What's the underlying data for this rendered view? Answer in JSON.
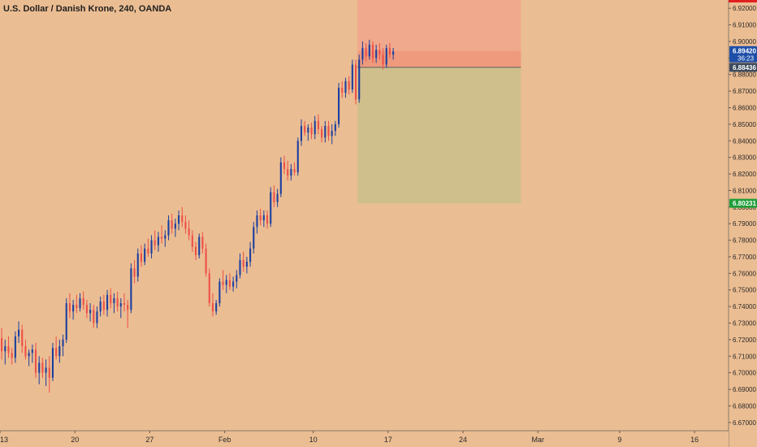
{
  "chart_data": {
    "type": "candlestick",
    "title": "U.S. Dollar / Danish Krone, 240, OANDA",
    "ylim": [
      6.665,
      6.925
    ],
    "y_ticks": [
      6.67,
      6.68,
      6.69,
      6.7,
      6.71,
      6.72,
      6.73,
      6.74,
      6.75,
      6.76,
      6.77,
      6.78,
      6.79,
      6.8,
      6.81,
      6.82,
      6.83,
      6.84,
      6.85,
      6.86,
      6.87,
      6.88,
      6.89,
      6.9,
      6.91,
      6.92
    ],
    "y_tick_labels": [
      "6.67000",
      "6.68000",
      "6.69000",
      "6.70000",
      "6.71000",
      "6.72000",
      "6.73000",
      "6.74000",
      "6.75000",
      "6.76000",
      "6.77000",
      "6.78000",
      "6.79000",
      "6.80000",
      "6.81000",
      "6.82000",
      "6.83000",
      "6.84000",
      "6.85000",
      "6.86000",
      "6.87000",
      "6.88000",
      "6.89000",
      "6.90000",
      "6.91000",
      "6.92000"
    ],
    "x_range": [
      0,
      214
    ],
    "x_ticks": [
      {
        "label": "13",
        "x": 0
      },
      {
        "label": "20",
        "x": 22
      },
      {
        "label": "27",
        "x": 44
      },
      {
        "label": "Feb",
        "x": 66
      },
      {
        "label": "10",
        "x": 92
      },
      {
        "label": "17",
        "x": 114
      },
      {
        "label": "24",
        "x": 136
      },
      {
        "label": "Mar",
        "x": 158
      },
      {
        "label": "9",
        "x": 182
      },
      {
        "label": "16",
        "x": 204
      }
    ],
    "price_labels": [
      {
        "value": 6.8942,
        "label": "6.89420",
        "color": "#1e4fa8",
        "countdown": "36:23"
      },
      {
        "value": 6.88436,
        "label": "6.88436",
        "color": "#3d4a5c"
      },
      {
        "value": 6.80231,
        "label": "6.80231",
        "color": "#1f9e3a"
      }
    ],
    "grid": false,
    "position": {
      "entry": 6.88436,
      "stop": 6.925,
      "target": 6.80231,
      "x_start": 105,
      "x_end": 153,
      "shaded_band": [
        6.88436,
        6.8942
      ]
    },
    "colors": {
      "up": "#1b3fa0",
      "down": "#ee5048",
      "risk": "#f0a98c",
      "risk_band": "#ef9a7c",
      "reward": "#cfbf8c",
      "background": "#ebbd92"
    },
    "candles": [
      {
        "x": 0,
        "o": 6.721,
        "h": 6.727,
        "l": 6.708,
        "c": 6.713
      },
      {
        "x": 1,
        "o": 6.713,
        "h": 6.72,
        "l": 6.705,
        "c": 6.716
      },
      {
        "x": 2,
        "o": 6.716,
        "h": 6.722,
        "l": 6.709,
        "c": 6.712
      },
      {
        "x": 3,
        "o": 6.712,
        "h": 6.715,
        "l": 6.705,
        "c": 6.709
      },
      {
        "x": 4,
        "o": 6.709,
        "h": 6.725,
        "l": 6.706,
        "c": 6.722
      },
      {
        "x": 5,
        "o": 6.722,
        "h": 6.731,
        "l": 6.718,
        "c": 6.726
      },
      {
        "x": 6,
        "o": 6.726,
        "h": 6.729,
        "l": 6.712,
        "c": 6.716
      },
      {
        "x": 7,
        "o": 6.716,
        "h": 6.72,
        "l": 6.708,
        "c": 6.71
      },
      {
        "x": 8,
        "o": 6.71,
        "h": 6.714,
        "l": 6.704,
        "c": 6.712
      },
      {
        "x": 9,
        "o": 6.712,
        "h": 6.717,
        "l": 6.706,
        "c": 6.714
      },
      {
        "x": 10,
        "o": 6.714,
        "h": 6.718,
        "l": 6.697,
        "c": 6.7
      },
      {
        "x": 11,
        "o": 6.7,
        "h": 6.71,
        "l": 6.693,
        "c": 6.706
      },
      {
        "x": 12,
        "o": 6.706,
        "h": 6.709,
        "l": 6.697,
        "c": 6.7
      },
      {
        "x": 13,
        "o": 6.7,
        "h": 6.708,
        "l": 6.692,
        "c": 6.703
      },
      {
        "x": 14,
        "o": 6.703,
        "h": 6.71,
        "l": 6.688,
        "c": 6.697
      },
      {
        "x": 15,
        "o": 6.697,
        "h": 6.718,
        "l": 6.695,
        "c": 6.715
      },
      {
        "x": 16,
        "o": 6.715,
        "h": 6.722,
        "l": 6.708,
        "c": 6.71
      },
      {
        "x": 17,
        "o": 6.71,
        "h": 6.72,
        "l": 6.706,
        "c": 6.716
      },
      {
        "x": 18,
        "o": 6.716,
        "h": 6.723,
        "l": 6.71,
        "c": 6.72
      },
      {
        "x": 19,
        "o": 6.72,
        "h": 6.745,
        "l": 6.718,
        "c": 6.742
      },
      {
        "x": 20,
        "o": 6.742,
        "h": 6.748,
        "l": 6.733,
        "c": 6.737
      },
      {
        "x": 21,
        "o": 6.737,
        "h": 6.744,
        "l": 6.732,
        "c": 6.741
      },
      {
        "x": 22,
        "o": 6.741,
        "h": 6.747,
        "l": 6.736,
        "c": 6.739
      },
      {
        "x": 23,
        "o": 6.739,
        "h": 6.748,
        "l": 6.737,
        "c": 6.745
      },
      {
        "x": 24,
        "o": 6.745,
        "h": 6.749,
        "l": 6.738,
        "c": 6.741
      },
      {
        "x": 25,
        "o": 6.741,
        "h": 6.744,
        "l": 6.733,
        "c": 6.736
      },
      {
        "x": 26,
        "o": 6.736,
        "h": 6.742,
        "l": 6.731,
        "c": 6.738
      },
      {
        "x": 27,
        "o": 6.738,
        "h": 6.741,
        "l": 6.727,
        "c": 6.73
      },
      {
        "x": 28,
        "o": 6.73,
        "h": 6.74,
        "l": 6.727,
        "c": 6.737
      },
      {
        "x": 29,
        "o": 6.737,
        "h": 6.746,
        "l": 6.734,
        "c": 6.743
      },
      {
        "x": 30,
        "o": 6.743,
        "h": 6.747,
        "l": 6.735,
        "c": 6.738
      },
      {
        "x": 31,
        "o": 6.738,
        "h": 6.75,
        "l": 6.734,
        "c": 6.747
      },
      {
        "x": 32,
        "o": 6.747,
        "h": 6.751,
        "l": 6.739,
        "c": 6.742
      },
      {
        "x": 33,
        "o": 6.742,
        "h": 6.748,
        "l": 6.736,
        "c": 6.745
      },
      {
        "x": 34,
        "o": 6.745,
        "h": 6.749,
        "l": 6.737,
        "c": 6.74
      },
      {
        "x": 35,
        "o": 6.74,
        "h": 6.745,
        "l": 6.733,
        "c": 6.742
      },
      {
        "x": 36,
        "o": 6.742,
        "h": 6.748,
        "l": 6.737,
        "c": 6.741
      },
      {
        "x": 37,
        "o": 6.741,
        "h": 6.744,
        "l": 6.727,
        "c": 6.738
      },
      {
        "x": 38,
        "o": 6.738,
        "h": 6.766,
        "l": 6.736,
        "c": 6.763
      },
      {
        "x": 39,
        "o": 6.763,
        "h": 6.768,
        "l": 6.754,
        "c": 6.758
      },
      {
        "x": 40,
        "o": 6.758,
        "h": 6.775,
        "l": 6.755,
        "c": 6.772
      },
      {
        "x": 41,
        "o": 6.772,
        "h": 6.777,
        "l": 6.764,
        "c": 6.767
      },
      {
        "x": 42,
        "o": 6.767,
        "h": 6.778,
        "l": 6.765,
        "c": 6.775
      },
      {
        "x": 43,
        "o": 6.775,
        "h": 6.781,
        "l": 6.77,
        "c": 6.772
      },
      {
        "x": 44,
        "o": 6.772,
        "h": 6.783,
        "l": 6.769,
        "c": 6.78
      },
      {
        "x": 45,
        "o": 6.78,
        "h": 6.786,
        "l": 6.774,
        "c": 6.777
      },
      {
        "x": 46,
        "o": 6.777,
        "h": 6.785,
        "l": 6.773,
        "c": 6.782
      },
      {
        "x": 47,
        "o": 6.782,
        "h": 6.789,
        "l": 6.778,
        "c": 6.781
      },
      {
        "x": 48,
        "o": 6.781,
        "h": 6.786,
        "l": 6.776,
        "c": 6.783
      },
      {
        "x": 49,
        "o": 6.783,
        "h": 6.795,
        "l": 6.78,
        "c": 6.792
      },
      {
        "x": 50,
        "o": 6.792,
        "h": 6.796,
        "l": 6.784,
        "c": 6.787
      },
      {
        "x": 51,
        "o": 6.787,
        "h": 6.793,
        "l": 6.782,
        "c": 6.79
      },
      {
        "x": 52,
        "o": 6.79,
        "h": 6.798,
        "l": 6.786,
        "c": 6.795
      },
      {
        "x": 53,
        "o": 6.795,
        "h": 6.8,
        "l": 6.788,
        "c": 6.791
      },
      {
        "x": 54,
        "o": 6.791,
        "h": 6.795,
        "l": 6.784,
        "c": 6.787
      },
      {
        "x": 55,
        "o": 6.787,
        "h": 6.792,
        "l": 6.78,
        "c": 6.783
      },
      {
        "x": 56,
        "o": 6.783,
        "h": 6.786,
        "l": 6.773,
        "c": 6.776
      },
      {
        "x": 57,
        "o": 6.776,
        "h": 6.779,
        "l": 6.768,
        "c": 6.771
      },
      {
        "x": 58,
        "o": 6.771,
        "h": 6.784,
        "l": 6.769,
        "c": 6.782
      },
      {
        "x": 59,
        "o": 6.782,
        "h": 6.785,
        "l": 6.772,
        "c": 6.775
      },
      {
        "x": 60,
        "o": 6.775,
        "h": 6.778,
        "l": 6.758,
        "c": 6.76
      },
      {
        "x": 61,
        "o": 6.76,
        "h": 6.763,
        "l": 6.74,
        "c": 6.742
      },
      {
        "x": 62,
        "o": 6.742,
        "h": 6.748,
        "l": 6.734,
        "c": 6.737
      },
      {
        "x": 63,
        "o": 6.737,
        "h": 6.744,
        "l": 6.735,
        "c": 6.742
      },
      {
        "x": 64,
        "o": 6.742,
        "h": 6.757,
        "l": 6.74,
        "c": 6.755
      },
      {
        "x": 65,
        "o": 6.755,
        "h": 6.762,
        "l": 6.75,
        "c": 6.753
      },
      {
        "x": 66,
        "o": 6.753,
        "h": 6.759,
        "l": 6.748,
        "c": 6.756
      },
      {
        "x": 67,
        "o": 6.756,
        "h": 6.76,
        "l": 6.75,
        "c": 6.752
      },
      {
        "x": 68,
        "o": 6.752,
        "h": 6.758,
        "l": 6.749,
        "c": 6.755
      },
      {
        "x": 69,
        "o": 6.755,
        "h": 6.762,
        "l": 6.751,
        "c": 6.759
      },
      {
        "x": 70,
        "o": 6.759,
        "h": 6.772,
        "l": 6.757,
        "c": 6.768
      },
      {
        "x": 71,
        "o": 6.768,
        "h": 6.773,
        "l": 6.761,
        "c": 6.764
      },
      {
        "x": 72,
        "o": 6.764,
        "h": 6.77,
        "l": 6.76,
        "c": 6.767
      },
      {
        "x": 73,
        "o": 6.767,
        "h": 6.779,
        "l": 6.764,
        "c": 6.775
      },
      {
        "x": 74,
        "o": 6.775,
        "h": 6.791,
        "l": 6.772,
        "c": 6.788
      },
      {
        "x": 75,
        "o": 6.788,
        "h": 6.798,
        "l": 6.784,
        "c": 6.795
      },
      {
        "x": 76,
        "o": 6.795,
        "h": 6.799,
        "l": 6.789,
        "c": 6.792
      },
      {
        "x": 77,
        "o": 6.792,
        "h": 6.798,
        "l": 6.788,
        "c": 6.795
      },
      {
        "x": 78,
        "o": 6.795,
        "h": 6.798,
        "l": 6.787,
        "c": 6.79
      },
      {
        "x": 79,
        "o": 6.79,
        "h": 6.812,
        "l": 6.788,
        "c": 6.809
      },
      {
        "x": 80,
        "o": 6.809,
        "h": 6.813,
        "l": 6.8,
        "c": 6.803
      },
      {
        "x": 81,
        "o": 6.803,
        "h": 6.811,
        "l": 6.8,
        "c": 6.808
      },
      {
        "x": 82,
        "o": 6.808,
        "h": 6.83,
        "l": 6.806,
        "c": 6.827
      },
      {
        "x": 83,
        "o": 6.827,
        "h": 6.831,
        "l": 6.82,
        "c": 6.823
      },
      {
        "x": 84,
        "o": 6.823,
        "h": 6.828,
        "l": 6.816,
        "c": 6.819
      },
      {
        "x": 85,
        "o": 6.819,
        "h": 6.826,
        "l": 6.816,
        "c": 6.823
      },
      {
        "x": 86,
        "o": 6.823,
        "h": 6.827,
        "l": 6.819,
        "c": 6.821
      },
      {
        "x": 87,
        "o": 6.821,
        "h": 6.842,
        "l": 6.819,
        "c": 6.84
      },
      {
        "x": 88,
        "o": 6.84,
        "h": 6.853,
        "l": 6.837,
        "c": 6.849
      },
      {
        "x": 89,
        "o": 6.849,
        "h": 6.852,
        "l": 6.843,
        "c": 6.845
      },
      {
        "x": 90,
        "o": 6.845,
        "h": 6.85,
        "l": 6.84,
        "c": 6.848
      },
      {
        "x": 91,
        "o": 6.848,
        "h": 6.851,
        "l": 6.841,
        "c": 6.844
      },
      {
        "x": 92,
        "o": 6.844,
        "h": 6.855,
        "l": 6.841,
        "c": 6.852
      },
      {
        "x": 93,
        "o": 6.852,
        "h": 6.856,
        "l": 6.844,
        "c": 6.847
      },
      {
        "x": 94,
        "o": 6.847,
        "h": 6.849,
        "l": 6.839,
        "c": 6.842
      },
      {
        "x": 95,
        "o": 6.842,
        "h": 6.852,
        "l": 6.839,
        "c": 6.849
      },
      {
        "x": 96,
        "o": 6.849,
        "h": 6.852,
        "l": 6.84,
        "c": 6.843
      },
      {
        "x": 97,
        "o": 6.843,
        "h": 6.85,
        "l": 6.838,
        "c": 6.846
      },
      {
        "x": 98,
        "o": 6.846,
        "h": 6.852,
        "l": 6.843,
        "c": 6.85
      },
      {
        "x": 99,
        "o": 6.85,
        "h": 6.875,
        "l": 6.848,
        "c": 6.872
      },
      {
        "x": 100,
        "o": 6.872,
        "h": 6.876,
        "l": 6.866,
        "c": 6.869
      },
      {
        "x": 101,
        "o": 6.869,
        "h": 6.878,
        "l": 6.866,
        "c": 6.876
      },
      {
        "x": 102,
        "o": 6.876,
        "h": 6.879,
        "l": 6.868,
        "c": 6.871
      },
      {
        "x": 103,
        "o": 6.871,
        "h": 6.889,
        "l": 6.869,
        "c": 6.886
      },
      {
        "x": 104,
        "o": 6.886,
        "h": 6.889,
        "l": 6.862,
        "c": 6.865
      },
      {
        "x": 105,
        "o": 6.865,
        "h": 6.892,
        "l": 6.863,
        "c": 6.889
      },
      {
        "x": 106,
        "o": 6.889,
        "h": 6.9,
        "l": 6.886,
        "c": 6.896
      },
      {
        "x": 107,
        "o": 6.896,
        "h": 6.899,
        "l": 6.888,
        "c": 6.891
      },
      {
        "x": 108,
        "o": 6.891,
        "h": 6.901,
        "l": 6.889,
        "c": 6.898
      },
      {
        "x": 109,
        "o": 6.898,
        "h": 6.9,
        "l": 6.887,
        "c": 6.89
      },
      {
        "x": 110,
        "o": 6.89,
        "h": 6.898,
        "l": 6.887,
        "c": 6.895
      },
      {
        "x": 111,
        "o": 6.895,
        "h": 6.899,
        "l": 6.889,
        "c": 6.892
      },
      {
        "x": 112,
        "o": 6.892,
        "h": 6.896,
        "l": 6.883,
        "c": 6.886
      },
      {
        "x": 113,
        "o": 6.886,
        "h": 6.898,
        "l": 6.884,
        "c": 6.896
      },
      {
        "x": 114,
        "o": 6.896,
        "h": 6.899,
        "l": 6.89,
        "c": 6.892
      },
      {
        "x": 115,
        "o": 6.892,
        "h": 6.896,
        "l": 6.889,
        "c": 6.894
      }
    ]
  }
}
